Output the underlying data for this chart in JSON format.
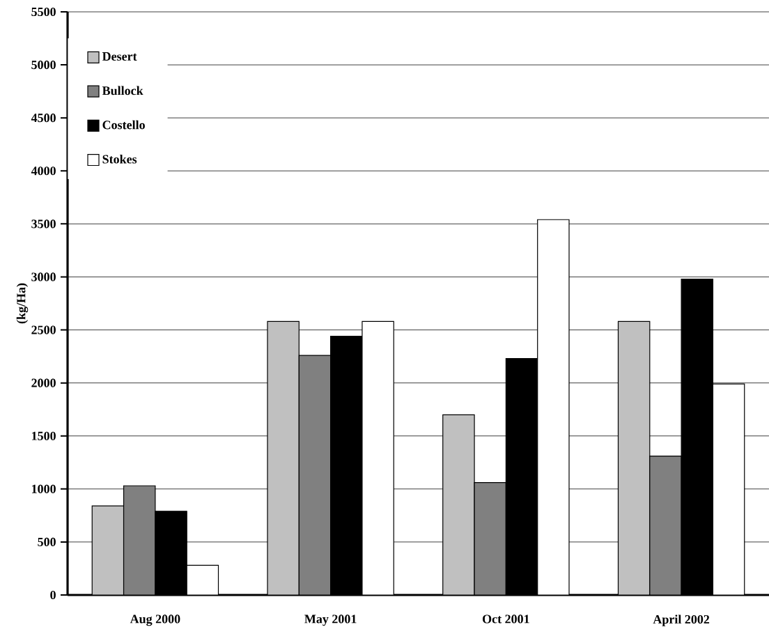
{
  "chart_data": {
    "type": "bar",
    "ylabel": "(kg/Ha)",
    "categories": [
      "Aug 2000",
      "May 2001",
      "Oct 2001",
      "April 2002"
    ],
    "series": [
      {
        "name": "Desert",
        "color": "#c0c0c0",
        "values": [
          840,
          2580,
          1700,
          2580
        ]
      },
      {
        "name": "Bullock",
        "color": "#808080",
        "values": [
          1030,
          2260,
          1060,
          1310
        ]
      },
      {
        "name": "Costello",
        "color": "#000000",
        "values": [
          790,
          2440,
          2230,
          2980
        ]
      },
      {
        "name": "Stokes",
        "color": "#ffffff",
        "values": [
          280,
          2580,
          3540,
          1990
        ]
      }
    ],
    "ylim": [
      0,
      5500
    ],
    "yticks": [
      0,
      500,
      1000,
      1500,
      2000,
      2500,
      3000,
      3500,
      4000,
      4500,
      5000,
      5500
    ],
    "grid": "y",
    "legend": "top left"
  }
}
